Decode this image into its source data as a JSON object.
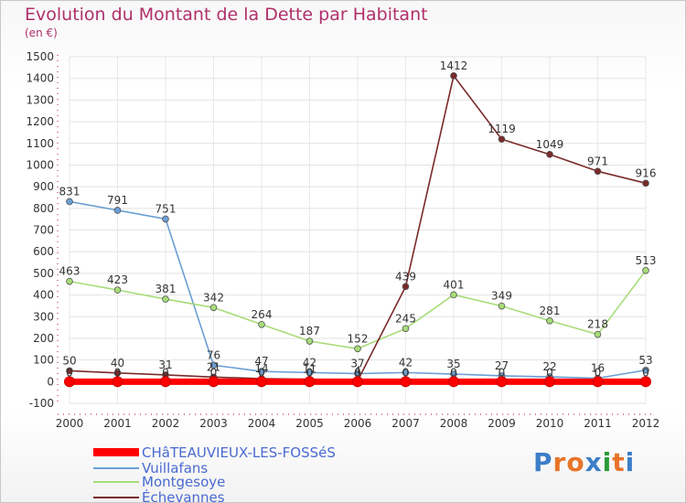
{
  "header": {
    "title": "Evolution du Montant de la Dette par Habitant",
    "unit": "(en €)"
  },
  "logo": {
    "text": "Proxiti",
    "letter_colors": [
      "#3c7ec8",
      "#e8742a",
      "#e8742a",
      "#3c7ec8",
      "#2a9a3a",
      "#e8742a",
      "#3c7ec8"
    ]
  },
  "chart_data": {
    "type": "line",
    "x": [
      "2000",
      "2001",
      "2002",
      "2003",
      "2004",
      "2005",
      "2006",
      "2007",
      "2008",
      "2009",
      "2010",
      "2011",
      "2012"
    ],
    "ylim": [
      -100,
      1500
    ],
    "yticks": [
      "-100",
      "0",
      "100",
      "200",
      "300",
      "400",
      "500",
      "600",
      "700",
      "800",
      "900",
      "1000",
      "1100",
      "1200",
      "1300",
      "1400",
      "1500"
    ],
    "grid": true,
    "legend_position": "bottom-left",
    "series": [
      {
        "name": "CHâTEAUVIEUX-LES-FOSSéS",
        "color": "#ff0000",
        "values": [
          0,
          0,
          0,
          0,
          0,
          0,
          0,
          0,
          0,
          0,
          0,
          0,
          0
        ],
        "labels": [
          "0",
          "0",
          "0",
          "0",
          "0",
          "0",
          "0",
          "0",
          "0",
          "0",
          "0",
          "0",
          "0"
        ]
      },
      {
        "name": "Vuillafans",
        "color": "#6a9fd4",
        "values": [
          831,
          791,
          751,
          76,
          47,
          42,
          37,
          42,
          35,
          27,
          22,
          16,
          53
        ],
        "labels": [
          "831",
          "791",
          "751",
          "76",
          "47",
          "42",
          "37",
          "42",
          "35",
          "27",
          "22",
          "16",
          "53"
        ]
      },
      {
        "name": "Montgesoye",
        "color": "#a6dc78",
        "values": [
          463,
          423,
          381,
          342,
          264,
          187,
          152,
          245,
          401,
          349,
          281,
          218,
          513
        ],
        "labels": [
          "463",
          "423",
          "381",
          "342",
          "264",
          "187",
          "152",
          "245",
          "401",
          "349",
          "281",
          "218",
          "513"
        ]
      },
      {
        "name": "Échevannes",
        "color": "#7a2a2a",
        "values": [
          50,
          40,
          31,
          21,
          14,
          11,
          4,
          439,
          1412,
          1119,
          1049,
          971,
          916
        ],
        "labels": [
          "50",
          "40",
          "31",
          "21",
          "14",
          "11",
          "4",
          "439",
          "1412",
          "1119",
          "1049",
          "971",
          "916"
        ]
      }
    ]
  }
}
